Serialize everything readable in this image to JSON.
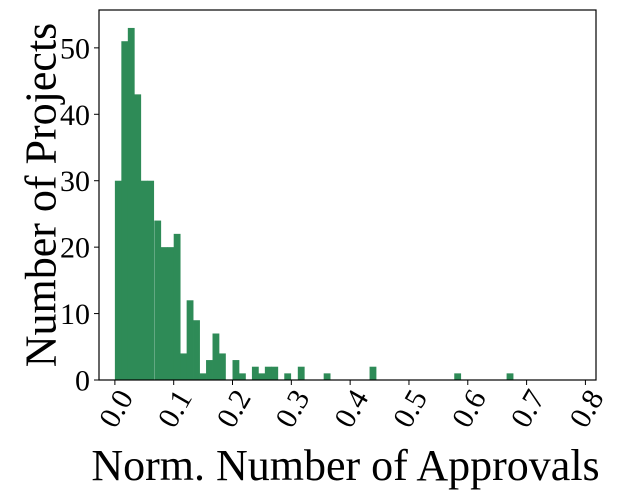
{
  "chart_data": {
    "type": "bar",
    "title": "",
    "xlabel": "Norm. Number of Approvals",
    "ylabel": "Number of Projects",
    "bin_width": 0.0111,
    "bins": [
      {
        "x": 0.0,
        "count": 30
      },
      {
        "x": 0.011,
        "count": 51
      },
      {
        "x": 0.022,
        "count": 53
      },
      {
        "x": 0.033,
        "count": 43
      },
      {
        "x": 0.044,
        "count": 30
      },
      {
        "x": 0.055,
        "count": 30
      },
      {
        "x": 0.067,
        "count": 24
      },
      {
        "x": 0.078,
        "count": 20
      },
      {
        "x": 0.089,
        "count": 20
      },
      {
        "x": 0.1,
        "count": 22
      },
      {
        "x": 0.111,
        "count": 4
      },
      {
        "x": 0.122,
        "count": 12
      },
      {
        "x": 0.133,
        "count": 9
      },
      {
        "x": 0.144,
        "count": 1
      },
      {
        "x": 0.155,
        "count": 3
      },
      {
        "x": 0.166,
        "count": 7
      },
      {
        "x": 0.177,
        "count": 4
      },
      {
        "x": 0.2,
        "count": 3
      },
      {
        "x": 0.211,
        "count": 1
      },
      {
        "x": 0.233,
        "count": 2
      },
      {
        "x": 0.244,
        "count": 1
      },
      {
        "x": 0.255,
        "count": 2
      },
      {
        "x": 0.266,
        "count": 2
      },
      {
        "x": 0.288,
        "count": 1
      },
      {
        "x": 0.311,
        "count": 2
      },
      {
        "x": 0.355,
        "count": 1
      },
      {
        "x": 0.433,
        "count": 2
      },
      {
        "x": 0.577,
        "count": 1
      },
      {
        "x": 0.666,
        "count": 1
      }
    ],
    "xlim": [
      -0.027,
      0.818
    ],
    "ylim": [
      0,
      55.7
    ],
    "x_ticks": [
      {
        "value": 0.0,
        "label": "0.0"
      },
      {
        "value": 0.1,
        "label": "0.1"
      },
      {
        "value": 0.2,
        "label": "0.2"
      },
      {
        "value": 0.3,
        "label": "0.3"
      },
      {
        "value": 0.4,
        "label": "0.4"
      },
      {
        "value": 0.5,
        "label": "0.5"
      },
      {
        "value": 0.6,
        "label": "0.6"
      },
      {
        "value": 0.7,
        "label": "0.7"
      },
      {
        "value": 0.8,
        "label": "0.8"
      }
    ],
    "y_ticks": [
      {
        "value": 0,
        "label": "0"
      },
      {
        "value": 10,
        "label": "10"
      },
      {
        "value": 20,
        "label": "20"
      },
      {
        "value": 30,
        "label": "30"
      },
      {
        "value": 40,
        "label": "40"
      },
      {
        "value": 50,
        "label": "50"
      }
    ],
    "bar_color": "#2e8b57",
    "grid": false,
    "legend": "none"
  }
}
